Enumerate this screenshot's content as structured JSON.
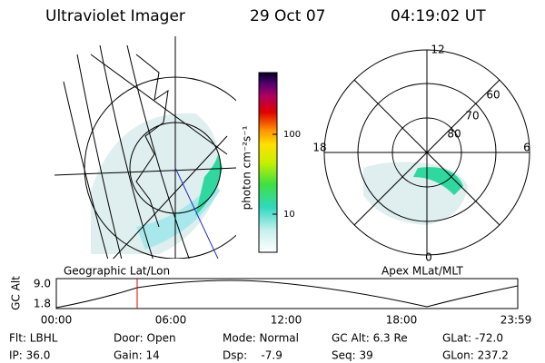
{
  "header": {
    "instrument": "Ultraviolet Imager",
    "date": "29 Oct 07",
    "time": "04:19:02 UT"
  },
  "colorbar": {
    "label": "photon cm⁻²s⁻¹",
    "ticks": [
      "100",
      "10"
    ]
  },
  "left_map": {
    "label": "Geographic Lat/Lon"
  },
  "right_map": {
    "label": "Apex MLat/MLT",
    "hours": [
      "12",
      "18",
      "6",
      "0"
    ],
    "latitudes": [
      "60",
      "70",
      "80"
    ]
  },
  "altitude_plot": {
    "ylabel": "GC Alt",
    "yticks": [
      "9.0",
      "1.8"
    ],
    "xticks": [
      "00:00",
      "06:00",
      "12:00",
      "18:00",
      "23:59"
    ]
  },
  "footer": {
    "rows": [
      [
        "Flt: LBHL",
        "Door: Open",
        "Mode: Normal",
        "GC Alt: 6.3 Re",
        "GLat: -72.0"
      ],
      [
        "IP: 36.0",
        "Gain: 14",
        "Dsp:    -7.9",
        "Seq: 39",
        "GLon: 237.2"
      ]
    ]
  }
}
